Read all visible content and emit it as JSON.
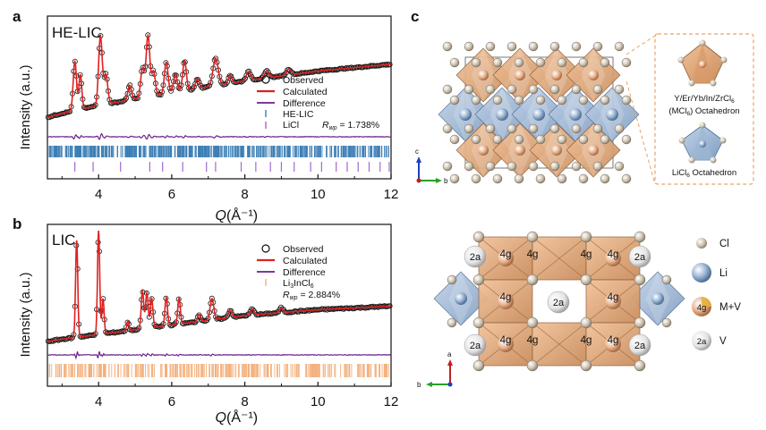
{
  "colors": {
    "observed": "#1a1a1a",
    "calculated": "#e02020",
    "difference": "#6a1f8a",
    "hkl_main": "#3d7fb5",
    "hkl_licl": "#a06ad0",
    "hkl_li3incl6": "#f3b07c",
    "oct_m": "#e1a77a",
    "oct_li": "#9db6d3",
    "cl_atom": "#c8bba7"
  },
  "panels": {
    "a": {
      "letter": "a",
      "sample_label": "HE-LIC",
      "legend": {
        "observed": "Observed",
        "calculated": "Calculated",
        "difference": "Difference",
        "hkl1": "HE-LIC",
        "hkl2": "LiCl",
        "rwp_symbol": "R",
        "rwp_sub": "wp",
        "rwp_value": " = 1.738%"
      }
    },
    "b": {
      "letter": "b",
      "sample_label": "LIC",
      "legend": {
        "observed": "Observed",
        "calculated": "Calculated",
        "difference": "Difference",
        "hkl1_main": "Li",
        "hkl1_sub1": "3",
        "hkl1_mid": "InCl",
        "hkl1_sub2": "6",
        "rwp_symbol": "R",
        "rwp_sub": "wp",
        "rwp_value": " = 2.884%"
      }
    },
    "c": {
      "letter": "c",
      "axis_c": "c",
      "axis_b": "b",
      "axis_a": "a",
      "octa_m_label_line1": "Y/Er/Yb/In/ZrCl",
      "octa_m_label_sub1": "6",
      "octa_m_label_line2": "(MCl",
      "octa_m_label_sub2": "6",
      "octa_m_label_line2_end": ") Octahedron",
      "octa_li_label": "LiCl",
      "octa_li_sub": "6",
      "octa_li_end": " Octahedron",
      "site_4g": "4g",
      "site_2a": "2a",
      "key_cl": "Cl",
      "key_li": "Li",
      "key_mv": "M+V",
      "key_v": "V"
    }
  },
  "chart_data": [
    {
      "type": "line",
      "panel": "a",
      "title": "HE-LIC",
      "xlabel_italic": "Q",
      "xlabel_unit": " (Å⁻¹)",
      "ylabel": "Intensity (a.u.)",
      "xlim": [
        2.6,
        12
      ],
      "ylim": [
        0,
        1
      ],
      "xticks": [
        "4",
        "6",
        "8",
        "10",
        "12"
      ],
      "xtick_values": [
        4,
        6,
        8,
        10,
        12
      ],
      "baseline": {
        "x": [
          2.6,
          3.0,
          4.0,
          6.0,
          8.0,
          10.0,
          12.0
        ],
        "y": [
          0.08,
          0.12,
          0.2,
          0.33,
          0.45,
          0.55,
          0.62
        ]
      },
      "peaks": [
        {
          "q": 3.35,
          "h": 0.5,
          "w": 0.045
        },
        {
          "q": 3.5,
          "h": 0.35,
          "w": 0.04
        },
        {
          "q": 4.05,
          "h": 0.7,
          "w": 0.05
        },
        {
          "q": 4.2,
          "h": 0.3,
          "w": 0.05
        },
        {
          "q": 4.85,
          "h": 0.15,
          "w": 0.05
        },
        {
          "q": 5.2,
          "h": 0.3,
          "w": 0.05
        },
        {
          "q": 5.35,
          "h": 0.62,
          "w": 0.05
        },
        {
          "q": 5.5,
          "h": 0.25,
          "w": 0.05
        },
        {
          "q": 5.85,
          "h": 0.32,
          "w": 0.05
        },
        {
          "q": 6.1,
          "h": 0.18,
          "w": 0.05
        },
        {
          "q": 6.35,
          "h": 0.3,
          "w": 0.05
        },
        {
          "q": 6.7,
          "h": 0.1,
          "w": 0.05
        },
        {
          "q": 7.2,
          "h": 0.28,
          "w": 0.07
        },
        {
          "q": 7.6,
          "h": 0.08,
          "w": 0.05
        },
        {
          "q": 8.1,
          "h": 0.09,
          "w": 0.06
        },
        {
          "q": 8.6,
          "h": 0.07,
          "w": 0.06
        },
        {
          "q": 9.2,
          "h": 0.06,
          "w": 0.06
        }
      ],
      "hkl_rows": [
        "HE-LIC",
        "LiCl"
      ],
      "licl_ticks": [
        3.35,
        3.85,
        4.6,
        5.4,
        5.75,
        6.3,
        6.95,
        7.2,
        7.9,
        8.3,
        8.7,
        9.0,
        9.35,
        9.8,
        10.1,
        10.5,
        10.8,
        11.1,
        11.4,
        11.7,
        11.95
      ],
      "rwp": "1.738%"
    },
    {
      "type": "line",
      "panel": "b",
      "title": "LIC",
      "xlabel_italic": "Q",
      "xlabel_unit": " (Å⁻¹)",
      "ylabel": "Intensity (a.u.)",
      "xlim": [
        2.6,
        12
      ],
      "ylim": [
        0,
        1
      ],
      "xticks": [
        "4",
        "6",
        "8",
        "10",
        "12"
      ],
      "xtick_values": [
        4,
        6,
        8,
        10,
        12
      ],
      "baseline": {
        "x": [
          2.6,
          3.0,
          4.0,
          6.0,
          8.0,
          10.0,
          12.0
        ],
        "y": [
          0.06,
          0.08,
          0.12,
          0.2,
          0.28,
          0.33,
          0.36
        ]
      },
      "peaks": [
        {
          "q": 3.4,
          "h": 0.82,
          "w": 0.03
        },
        {
          "q": 4.0,
          "h": 0.88,
          "w": 0.03
        },
        {
          "q": 4.12,
          "h": 0.3,
          "w": 0.03
        },
        {
          "q": 4.8,
          "h": 0.08,
          "w": 0.03
        },
        {
          "q": 5.2,
          "h": 0.32,
          "w": 0.035
        },
        {
          "q": 5.32,
          "h": 0.3,
          "w": 0.035
        },
        {
          "q": 5.45,
          "h": 0.25,
          "w": 0.035
        },
        {
          "q": 5.85,
          "h": 0.24,
          "w": 0.035
        },
        {
          "q": 6.2,
          "h": 0.22,
          "w": 0.035
        },
        {
          "q": 6.75,
          "h": 0.06,
          "w": 0.04
        },
        {
          "q": 7.1,
          "h": 0.18,
          "w": 0.05
        },
        {
          "q": 7.6,
          "h": 0.06,
          "w": 0.05
        },
        {
          "q": 8.2,
          "h": 0.05,
          "w": 0.05
        },
        {
          "q": 9.0,
          "h": 0.04,
          "w": 0.05
        }
      ],
      "hkl_rows": [
        "Li3InCl6"
      ],
      "rwp": "2.884%"
    }
  ]
}
